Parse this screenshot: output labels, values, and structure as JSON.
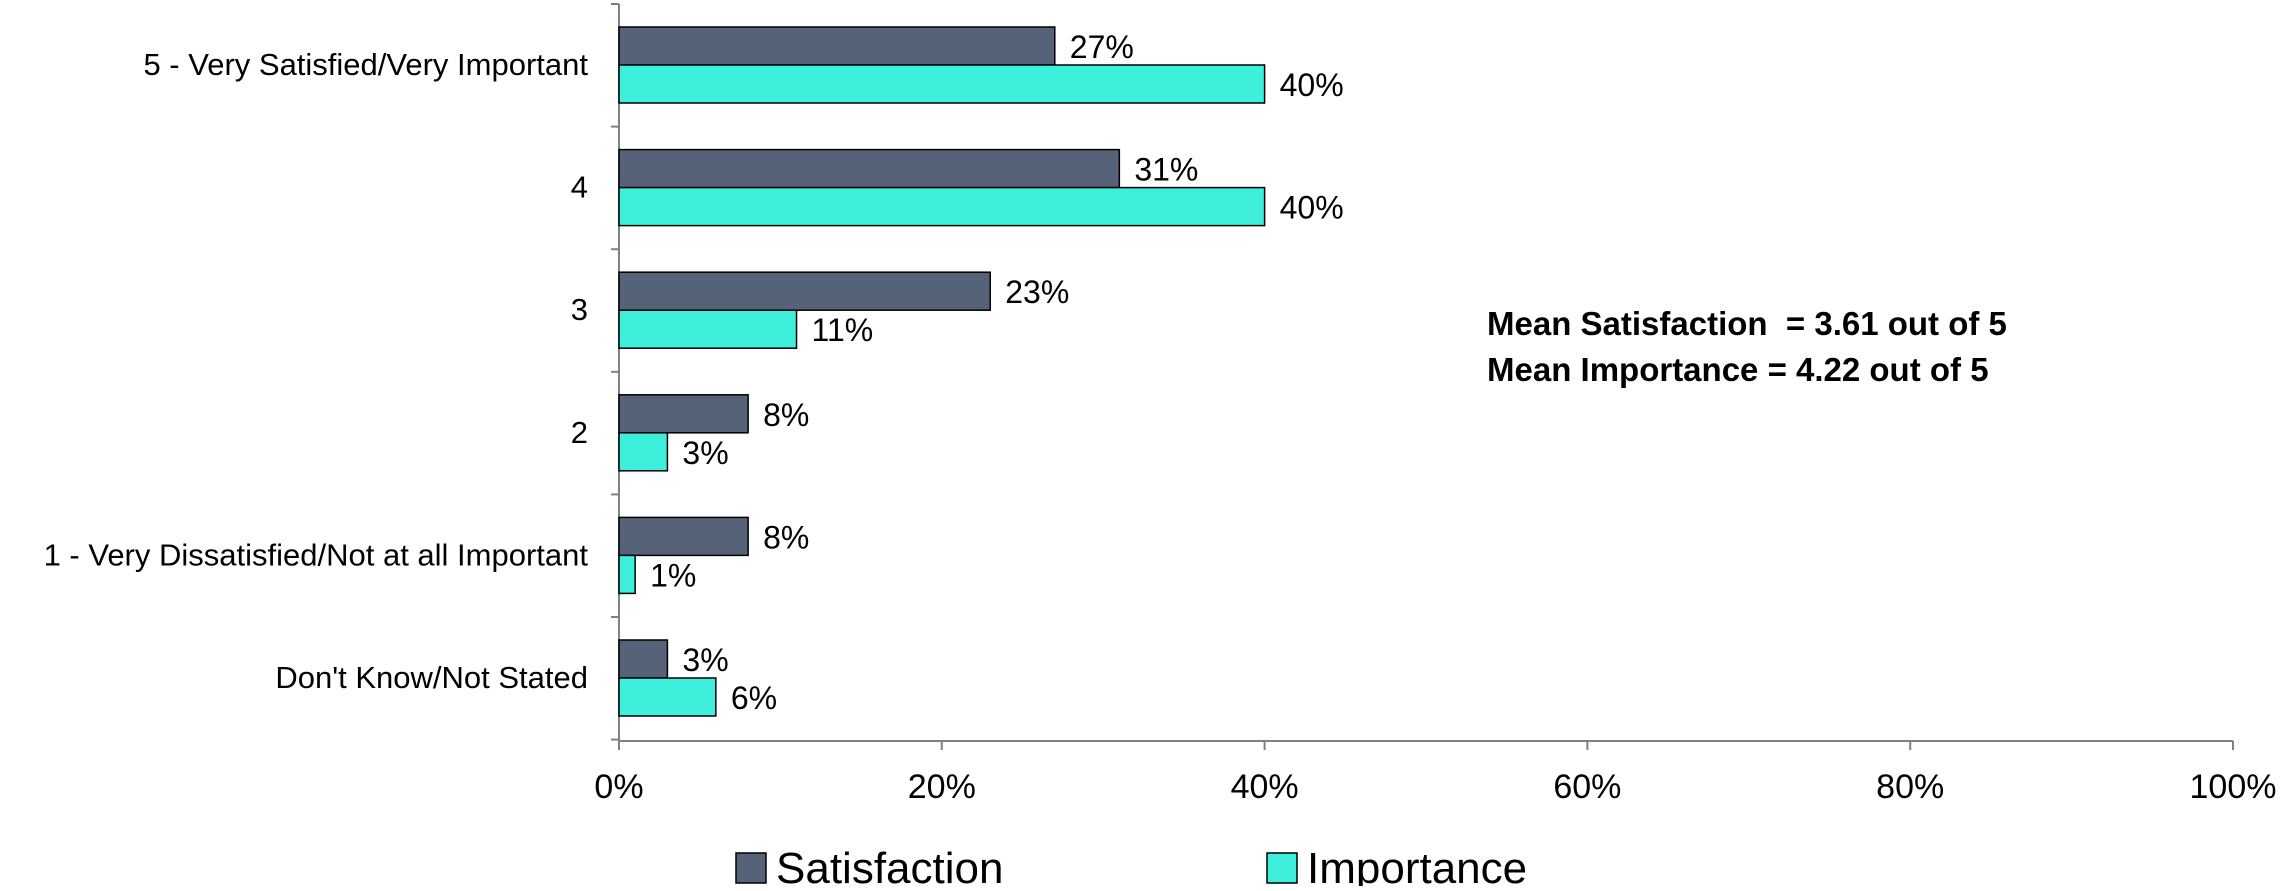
{
  "chart_data": {
    "type": "bar",
    "orientation": "horizontal",
    "categories": [
      "5 - Very Satisfied/Very Important",
      "4",
      "3",
      "2",
      "1 - Very Dissatisfied/Not at all Important",
      "Don't Know/Not Stated"
    ],
    "series": [
      {
        "name": "Satisfaction",
        "color": "#556278",
        "values": [
          27,
          31,
          23,
          8,
          8,
          3
        ],
        "labels": [
          "27%",
          "31%",
          "23%",
          "8%",
          "8%",
          "3%"
        ]
      },
      {
        "name": "Importance",
        "color": "#3ef0dc",
        "values": [
          40,
          40,
          11,
          3,
          1,
          6
        ],
        "labels": [
          "40%",
          "40%",
          "11%",
          "3%",
          "1%",
          "6%"
        ]
      }
    ],
    "xlim": [
      0,
      100
    ],
    "xticks": [
      "0%",
      "20%",
      "40%",
      "60%",
      "80%",
      "100%"
    ],
    "title": "",
    "xlabel": "",
    "ylabel": "",
    "grid": false,
    "legend_position": "bottom",
    "annotations": [
      "Mean Satisfaction  = 3.61 out of 5",
      "Mean Importance = 4.22 out of 5"
    ]
  }
}
